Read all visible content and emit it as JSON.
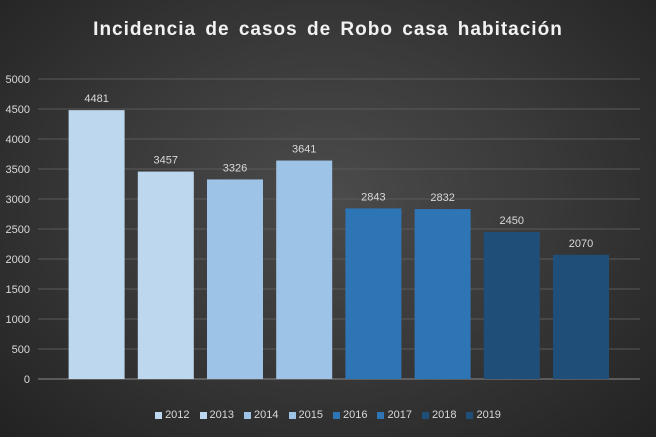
{
  "chart_data": {
    "type": "bar",
    "title": "Incidencia  de  casos  de  Robo  casa  habitación",
    "categories": [
      "2012",
      "2013",
      "2014",
      "2015",
      "2016",
      "2017",
      "2018",
      "2019"
    ],
    "values": [
      4481,
      3457,
      3326,
      3641,
      2843,
      2832,
      2450,
      2070
    ],
    "colors": [
      "#BDD7EE",
      "#BDD7EE",
      "#9DC3E6",
      "#9DC3E6",
      "#2E75B6",
      "#2E75B6",
      "#1F4E79",
      "#1F4E79"
    ],
    "ylim": [
      0,
      5000
    ],
    "yticks": [
      0,
      500,
      1000,
      1500,
      2000,
      2500,
      3000,
      3500,
      4000,
      4500,
      5000
    ],
    "grid": true,
    "legend": "bottom",
    "xlabel": "",
    "ylabel": ""
  }
}
